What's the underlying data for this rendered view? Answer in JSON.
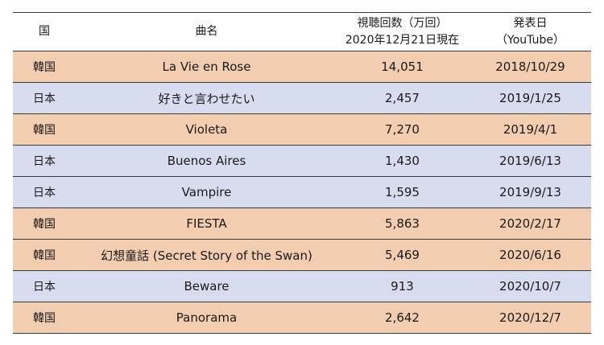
{
  "header": {
    "country": "国",
    "title": "曲名",
    "views_line1": "視聴回数（万回）",
    "views_line2": "2020年12月21日現在",
    "date_line1": "発表日",
    "date_line2": "（YouTube）"
  },
  "rows": [
    {
      "country": "韓国",
      "title": "La Vie en Rose",
      "views": "14,051",
      "date": "2018/10/29"
    },
    {
      "country": "日本",
      "title": "好きと言わせたい",
      "views": "2,457",
      "date": "2019/1/25"
    },
    {
      "country": "韓国",
      "title": "Violeta",
      "views": "7,270",
      "date": "2019/4/1"
    },
    {
      "country": "日本",
      "title": "Buenos Aires",
      "views": "1,430",
      "date": "2019/6/13"
    },
    {
      "country": "日本",
      "title": "Vampire",
      "views": "1,595",
      "date": "2019/9/13"
    },
    {
      "country": "韓国",
      "title": "FIESTA",
      "views": "5,863",
      "date": "2020/2/17"
    },
    {
      "country": "韓国",
      "title": "幻想童話 (Secret Story of the Swan)",
      "views": "5,469",
      "date": "2020/6/16"
    },
    {
      "country": "日本",
      "title": "Beware",
      "views": "913",
      "date": "2020/10/7"
    },
    {
      "country": "韓国",
      "title": "Panorama",
      "views": "2,642",
      "date": "2020/12/7"
    }
  ],
  "colors": {
    "korea_row": "#f2cdb0",
    "japan_row": "#d7ddef"
  }
}
